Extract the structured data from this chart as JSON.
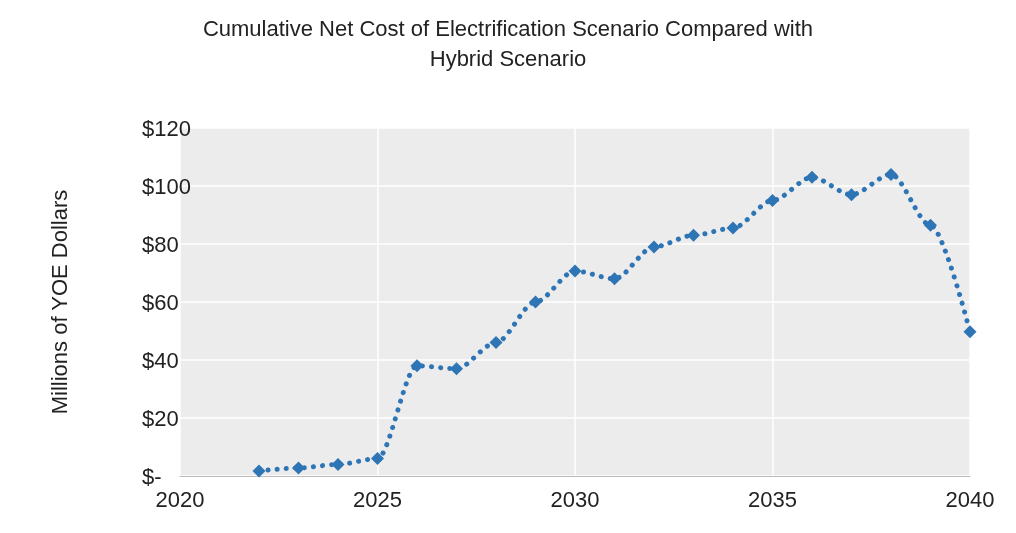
{
  "chart_data": {
    "type": "line",
    "title": "Cumulative Net Cost of Electrification Scenario Compared with\nHybrid Scenario",
    "ylabel": "Millions of YOE Dollars",
    "x": [
      2022,
      2023,
      2024,
      2025,
      2026,
      2027,
      2028,
      2029,
      2030,
      2031,
      2032,
      2033,
      2034,
      2035,
      2036,
      2037,
      2038,
      2039,
      2040
    ],
    "series": [
      {
        "color": "#2e75b6",
        "values": [
          1.7,
          2.8,
          4,
          6,
          38,
          37,
          46,
          60,
          70.7,
          68,
          79,
          83,
          85.5,
          95,
          103,
          97,
          104,
          86.5,
          49.7
        ]
      }
    ],
    "xlim": [
      2020,
      2040
    ],
    "xticks": [
      2020,
      2025,
      2030,
      2035,
      2040
    ],
    "ylim": [
      0,
      120
    ],
    "yticks": [
      {
        "value": 0,
        "label": "$-"
      },
      {
        "value": 20,
        "label": "$20"
      },
      {
        "value": 40,
        "label": "$40"
      },
      {
        "value": 60,
        "label": "$60"
      },
      {
        "value": 80,
        "label": "$80"
      },
      {
        "value": 100,
        "label": "$100"
      },
      {
        "value": 120,
        "label": "$120"
      }
    ],
    "grid": true,
    "marker": "diamond",
    "line_style": "dotted"
  }
}
